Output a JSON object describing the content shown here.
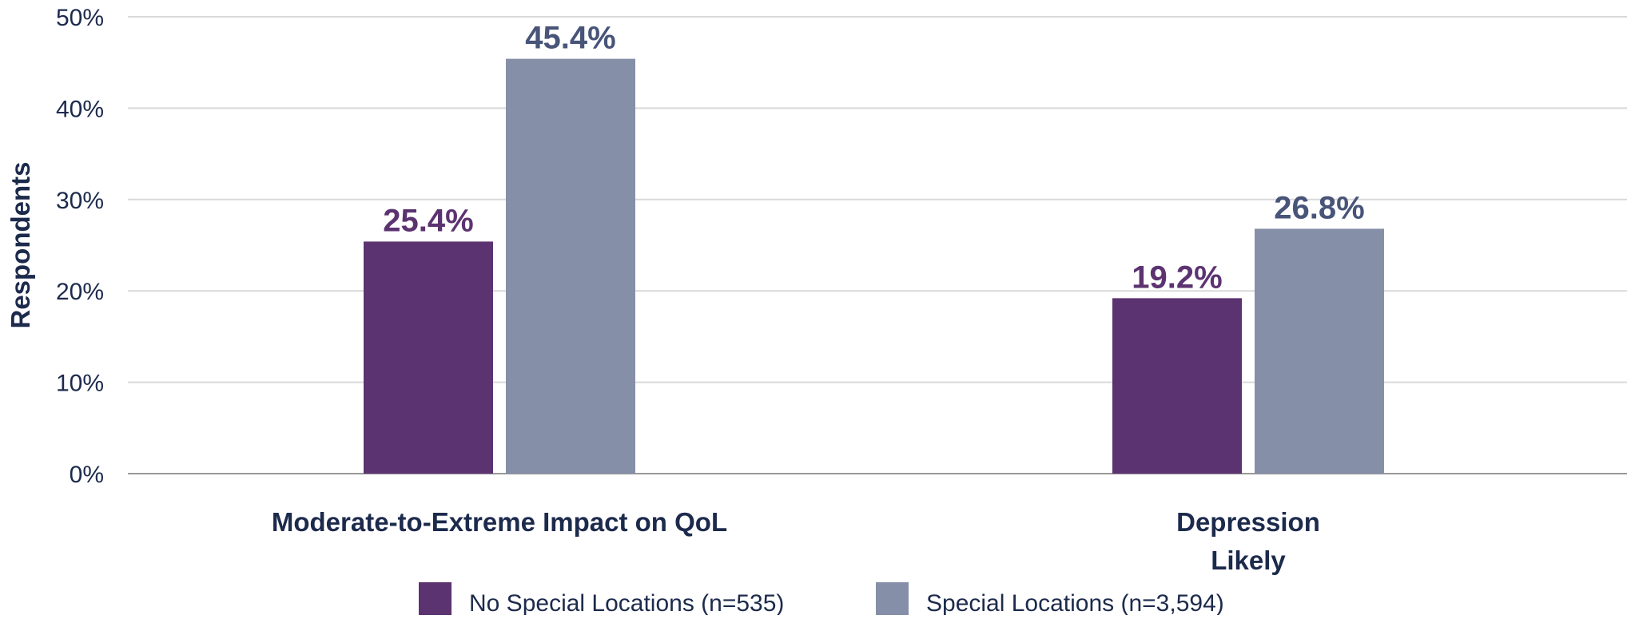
{
  "chart_data": {
    "type": "bar",
    "title": "",
    "xlabel": "",
    "ylabel": "Respondents",
    "ylim": [
      0,
      50
    ],
    "yticks": [
      0,
      10,
      20,
      30,
      40,
      50
    ],
    "ytick_labels": [
      "0%",
      "10%",
      "20%",
      "30%",
      "40%",
      "50%"
    ],
    "categories": [
      [
        "Moderate-to-Extreme Impact on QoL"
      ],
      [
        "Depression",
        "Likely"
      ]
    ],
    "series": [
      {
        "name": "No Special Locations (n=535)",
        "values": [
          25.4,
          19.2
        ],
        "labels": [
          "25.4%",
          "19.2%"
        ],
        "color": "#5c3371"
      },
      {
        "name": "Special Locations (n=3,594)",
        "values": [
          45.4,
          26.8
        ],
        "labels": [
          "45.4%",
          "26.8%"
        ],
        "color": "#858fa7"
      }
    ],
    "grid": true,
    "legend_position": "bottom-center",
    "colors": {
      "text": "#1c2a4c",
      "grid": "#d9d9d9",
      "axis": "#999999",
      "series_1_label": "#5c3371",
      "series_2_label": "#485478"
    }
  }
}
